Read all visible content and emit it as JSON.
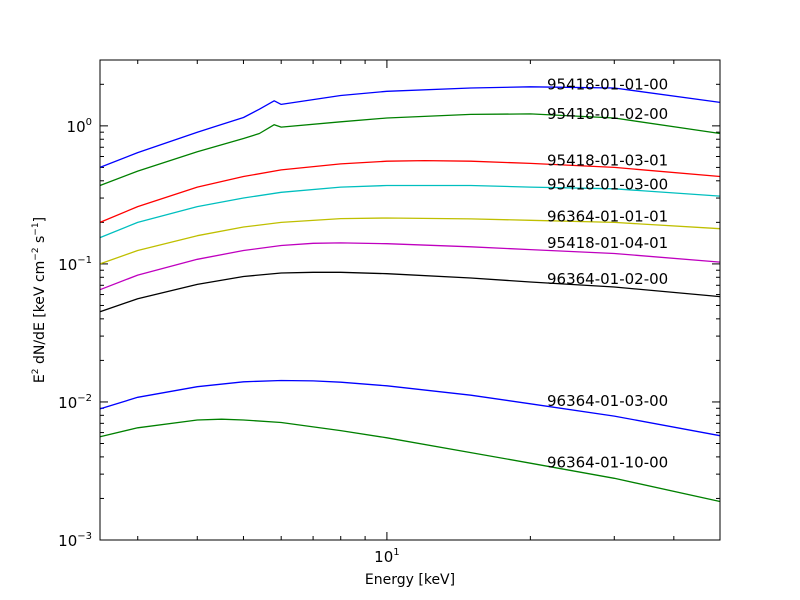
{
  "chart_data": {
    "type": "line",
    "title": "",
    "xlabel": "Energy [keV]",
    "ylabel": {
      "prefix": "E",
      "sup1": "2",
      "mid": "  dN/dE [keV cm",
      "sup2": "−2",
      "mid2": " s",
      "sup3": "−1",
      "suffix": "]"
    },
    "xscale": "log",
    "yscale": "log",
    "xlim": [
      2.5,
      50
    ],
    "ylim": [
      0.001,
      3
    ],
    "x_ticks": [
      {
        "value": 10,
        "base": "10",
        "exp": "1"
      }
    ],
    "y_ticks": [
      {
        "value": 0.001,
        "base": "10",
        "exp": "−3"
      },
      {
        "value": 0.01,
        "base": "10",
        "exp": "−2"
      },
      {
        "value": 0.1,
        "base": "10",
        "exp": "−1"
      },
      {
        "value": 1,
        "base": "10",
        "exp": "0"
      }
    ],
    "series": [
      {
        "name": "95418-01-01-00",
        "color": "#0000ff",
        "label_y": 2.0,
        "x": [
          2.5,
          3.0,
          4.0,
          5.0,
          5.4,
          5.8,
          6.0,
          8.0,
          10.0,
          15.0,
          20.0,
          30.0,
          50.0
        ],
        "y": [
          0.5,
          0.64,
          0.9,
          1.15,
          1.32,
          1.52,
          1.43,
          1.66,
          1.78,
          1.88,
          1.92,
          1.88,
          1.48
        ]
      },
      {
        "name": "95418-01-02-00",
        "color": "#008000",
        "label_y": 1.22,
        "x": [
          2.5,
          3.0,
          4.0,
          5.0,
          5.4,
          5.8,
          6.0,
          8.0,
          10.0,
          15.0,
          20.0,
          30.0,
          50.0
        ],
        "y": [
          0.37,
          0.47,
          0.65,
          0.81,
          0.88,
          1.02,
          0.98,
          1.07,
          1.14,
          1.21,
          1.22,
          1.14,
          0.88
        ]
      },
      {
        "name": "95418-01-03-01",
        "color": "#ff0000",
        "label_y": 0.56,
        "x": [
          2.5,
          3.0,
          4.0,
          5.0,
          6.0,
          8.0,
          10.0,
          12.0,
          15.0,
          20.0,
          30.0,
          50.0
        ],
        "y": [
          0.2,
          0.26,
          0.36,
          0.43,
          0.48,
          0.53,
          0.555,
          0.56,
          0.555,
          0.535,
          0.5,
          0.43
        ]
      },
      {
        "name": "95418-01-03-00",
        "color": "#00bfbf",
        "label_y": 0.375,
        "x": [
          2.5,
          3.0,
          4.0,
          5.0,
          6.0,
          8.0,
          10.0,
          15.0,
          20.0,
          30.0,
          50.0
        ],
        "y": [
          0.155,
          0.2,
          0.26,
          0.3,
          0.33,
          0.36,
          0.37,
          0.37,
          0.36,
          0.35,
          0.31
        ]
      },
      {
        "name": "96364-01-01-01",
        "color": "#bfbf00",
        "label_y": 0.22,
        "x": [
          2.5,
          3.0,
          4.0,
          5.0,
          6.0,
          8.0,
          10.0,
          15.0,
          20.0,
          30.0,
          50.0
        ],
        "y": [
          0.1,
          0.125,
          0.16,
          0.185,
          0.2,
          0.213,
          0.215,
          0.212,
          0.207,
          0.2,
          0.18
        ]
      },
      {
        "name": "95418-01-04-01",
        "color": "#bf00bf",
        "label_y": 0.142,
        "x": [
          2.5,
          3.0,
          4.0,
          5.0,
          6.0,
          7.0,
          8.0,
          10.0,
          15.0,
          20.0,
          30.0,
          50.0
        ],
        "y": [
          0.065,
          0.083,
          0.108,
          0.125,
          0.136,
          0.141,
          0.142,
          0.14,
          0.133,
          0.127,
          0.119,
          0.103
        ]
      },
      {
        "name": "96364-01-02-00",
        "color": "#000000",
        "label_y": 0.078,
        "x": [
          2.5,
          3.0,
          4.0,
          5.0,
          6.0,
          7.0,
          8.0,
          10.0,
          15.0,
          20.0,
          30.0,
          50.0
        ],
        "y": [
          0.045,
          0.056,
          0.071,
          0.081,
          0.086,
          0.087,
          0.087,
          0.085,
          0.079,
          0.074,
          0.068,
          0.058
        ]
      },
      {
        "name": "96364-01-03-00",
        "color": "#0000ff",
        "label_y": 0.0102,
        "x": [
          2.5,
          3.0,
          4.0,
          5.0,
          6.0,
          7.0,
          8.0,
          10.0,
          15.0,
          20.0,
          30.0,
          50.0
        ],
        "y": [
          0.0089,
          0.0108,
          0.0129,
          0.014,
          0.0143,
          0.0142,
          0.0139,
          0.0131,
          0.0112,
          0.0097,
          0.0079,
          0.0057
        ]
      },
      {
        "name": "96364-01-10-00",
        "color": "#008000",
        "label_y": 0.00365,
        "x": [
          2.5,
          3.0,
          4.0,
          4.5,
          5.0,
          6.0,
          8.0,
          10.0,
          15.0,
          20.0,
          30.0,
          50.0
        ],
        "y": [
          0.0056,
          0.0065,
          0.0074,
          0.0075,
          0.0074,
          0.0071,
          0.0062,
          0.0055,
          0.0043,
          0.0036,
          0.0028,
          0.0019
        ]
      }
    ]
  }
}
